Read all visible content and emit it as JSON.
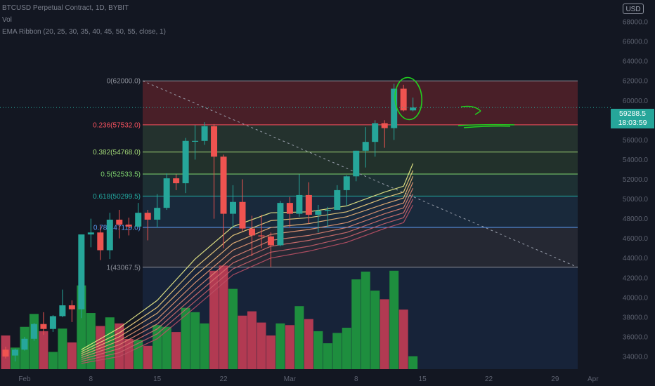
{
  "header": {
    "title": "BTCUSD Perpetual Contract, 1D, BYBIT",
    "volume_label": "Vol",
    "indicator_label": "EMA Ribbon (20, 25, 30, 35, 40, 45, 50, 55, close, 1)",
    "currency": "USD"
  },
  "last_price": {
    "value": "59288.5",
    "countdown": "18:03:59"
  },
  "colors": {
    "background": "#131722",
    "up": "#26a69a",
    "down": "#ef5350",
    "vol_up": "#1e8e3e",
    "vol_down": "#b23a52",
    "annotation": "#22d11f",
    "price_line": "#26a69a"
  },
  "chart_data": {
    "type": "candlestick",
    "symbol": "BTCUSD",
    "timeframe": "1D",
    "exchange": "BYBIT",
    "ylim": [
      33000,
      70000
    ],
    "y_ticks": [
      "34000.0",
      "36000.0",
      "38000.0",
      "40000.0",
      "42000.0",
      "44000.0",
      "46000.0",
      "48000.0",
      "50000.0",
      "52000.0",
      "54000.0",
      "56000.0",
      "58000.0",
      "60000.0",
      "62000.0",
      "64000.0",
      "66000.0",
      "68000.0"
    ],
    "x_ticks": [
      {
        "label": "Feb",
        "index": 2
      },
      {
        "label": "8",
        "index": 9
      },
      {
        "label": "15",
        "index": 16
      },
      {
        "label": "22",
        "index": 23
      },
      {
        "label": "Mar",
        "index": 30
      },
      {
        "label": "8",
        "index": 37
      },
      {
        "label": "15",
        "index": 44
      },
      {
        "label": "22",
        "index": 51
      },
      {
        "label": "29",
        "index": 58
      },
      {
        "label": "Apr",
        "index": 62
      }
    ],
    "candles": [
      {
        "date": "2021-01-31",
        "o": 34700,
        "h": 35000,
        "l": 33800,
        "c": 34000,
        "v": 3.9
      },
      {
        "date": "2021-02-01",
        "o": 34100,
        "h": 34800,
        "l": 33500,
        "c": 34700,
        "v": 2.5
      },
      {
        "date": "2021-02-02",
        "o": 34700,
        "h": 36000,
        "l": 34600,
        "c": 35800,
        "v": 4.9
      },
      {
        "date": "2021-02-03",
        "o": 35800,
        "h": 37400,
        "l": 35600,
        "c": 37300,
        "v": 6.4
      },
      {
        "date": "2021-02-04",
        "o": 37300,
        "h": 38500,
        "l": 36200,
        "c": 36800,
        "v": 4.4
      },
      {
        "date": "2021-02-05",
        "o": 36800,
        "h": 38200,
        "l": 36500,
        "c": 38100,
        "v": 2.0
      },
      {
        "date": "2021-02-06",
        "o": 38100,
        "h": 40800,
        "l": 38000,
        "c": 39200,
        "v": 4.7
      },
      {
        "date": "2021-02-07",
        "o": 39200,
        "h": 39700,
        "l": 37500,
        "c": 38800,
        "v": 3.1
      },
      {
        "date": "2021-02-08",
        "o": 38800,
        "h": 46400,
        "l": 37900,
        "c": 46400,
        "v": 9.7
      },
      {
        "date": "2021-02-09",
        "o": 46400,
        "h": 48000,
        "l": 45100,
        "c": 46600,
        "v": 6.5
      },
      {
        "date": "2021-02-10",
        "o": 46600,
        "h": 47300,
        "l": 43800,
        "c": 44800,
        "v": 5.0
      },
      {
        "date": "2021-02-11",
        "o": 44800,
        "h": 48600,
        "l": 43900,
        "c": 47900,
        "v": 6.0
      },
      {
        "date": "2021-02-12",
        "o": 47900,
        "h": 48900,
        "l": 46000,
        "c": 47400,
        "v": 5.3
      },
      {
        "date": "2021-02-13",
        "o": 47400,
        "h": 48100,
        "l": 46300,
        "c": 47200,
        "v": 3.5
      },
      {
        "date": "2021-02-14",
        "o": 47200,
        "h": 49600,
        "l": 47100,
        "c": 48600,
        "v": 3.4
      },
      {
        "date": "2021-02-15",
        "o": 48600,
        "h": 48900,
        "l": 45800,
        "c": 47900,
        "v": 2.7
      },
      {
        "date": "2021-02-16",
        "o": 47900,
        "h": 50500,
        "l": 47100,
        "c": 49100,
        "v": 5.1
      },
      {
        "date": "2021-02-17",
        "o": 49100,
        "h": 52600,
        "l": 48900,
        "c": 52100,
        "v": 4.9
      },
      {
        "date": "2021-02-18",
        "o": 52100,
        "h": 52500,
        "l": 50900,
        "c": 51600,
        "v": 4.3
      },
      {
        "date": "2021-02-19",
        "o": 51600,
        "h": 56200,
        "l": 50600,
        "c": 55900,
        "v": 7.1
      },
      {
        "date": "2021-02-20",
        "o": 55900,
        "h": 57500,
        "l": 54000,
        "c": 55900,
        "v": 6.6
      },
      {
        "date": "2021-02-21",
        "o": 55900,
        "h": 57800,
        "l": 55500,
        "c": 57400,
        "v": 5.3
      },
      {
        "date": "2021-02-22",
        "o": 57400,
        "h": 57600,
        "l": 48000,
        "c": 54300,
        "v": 11.4
      },
      {
        "date": "2021-02-23",
        "o": 54300,
        "h": 54500,
        "l": 45000,
        "c": 48500,
        "v": 12.0
      },
      {
        "date": "2021-02-24",
        "o": 48500,
        "h": 51400,
        "l": 47000,
        "c": 49700,
        "v": 9.3
      },
      {
        "date": "2021-02-25",
        "o": 49700,
        "h": 52000,
        "l": 46700,
        "c": 47000,
        "v": 6.2
      },
      {
        "date": "2021-02-26",
        "o": 47000,
        "h": 48300,
        "l": 44200,
        "c": 46300,
        "v": 6.7
      },
      {
        "date": "2021-02-27",
        "o": 46300,
        "h": 48400,
        "l": 45000,
        "c": 46200,
        "v": 5.4
      },
      {
        "date": "2021-02-28",
        "o": 46200,
        "h": 46600,
        "l": 43100,
        "c": 45300,
        "v": 3.9
      },
      {
        "date": "2021-03-01",
        "o": 45300,
        "h": 49800,
        "l": 45200,
        "c": 49600,
        "v": 5.3
      },
      {
        "date": "2021-03-02",
        "o": 49600,
        "h": 50200,
        "l": 47100,
        "c": 48500,
        "v": 5.1
      },
      {
        "date": "2021-03-03",
        "o": 48500,
        "h": 52500,
        "l": 48200,
        "c": 50400,
        "v": 7.3
      },
      {
        "date": "2021-03-04",
        "o": 50400,
        "h": 51700,
        "l": 47500,
        "c": 48400,
        "v": 5.8
      },
      {
        "date": "2021-03-05",
        "o": 48400,
        "h": 49400,
        "l": 46600,
        "c": 48800,
        "v": 4.4
      },
      {
        "date": "2021-03-06",
        "o": 48800,
        "h": 49200,
        "l": 47100,
        "c": 48900,
        "v": 3.0
      },
      {
        "date": "2021-03-07",
        "o": 48900,
        "h": 51400,
        "l": 48900,
        "c": 50900,
        "v": 4.2
      },
      {
        "date": "2021-03-08",
        "o": 50900,
        "h": 52400,
        "l": 49300,
        "c": 52300,
        "v": 4.8
      },
      {
        "date": "2021-03-09",
        "o": 52300,
        "h": 54900,
        "l": 51800,
        "c": 54900,
        "v": 10.4
      },
      {
        "date": "2021-03-10",
        "o": 54900,
        "h": 57300,
        "l": 53200,
        "c": 55800,
        "v": 11.3
      },
      {
        "date": "2021-03-11",
        "o": 55800,
        "h": 58000,
        "l": 54300,
        "c": 57700,
        "v": 9.1
      },
      {
        "date": "2021-03-12",
        "o": 57700,
        "h": 58000,
        "l": 55200,
        "c": 57200,
        "v": 8.1
      },
      {
        "date": "2021-03-13",
        "o": 57200,
        "h": 61700,
        "l": 56000,
        "c": 61200,
        "v": 11.4
      },
      {
        "date": "2021-03-14",
        "o": 61200,
        "h": 61600,
        "l": 58900,
        "c": 59000,
        "v": 6.9
      },
      {
        "date": "2021-03-15",
        "o": 59000,
        "h": 60300,
        "l": 58900,
        "c": 59288.5,
        "v": 1.5
      }
    ],
    "volume_unit_note": "relative volume",
    "ema_ribbon": {
      "periods": [
        20,
        25,
        30,
        35,
        40,
        45,
        50,
        55
      ],
      "colors": [
        "#eef08a",
        "#f2d27e",
        "#f1b77a",
        "#eb9a76",
        "#e08473",
        "#d5706f",
        "#c9606b",
        "#bb5065"
      ],
      "series": [
        [
          34700,
          36900,
          39700,
          43900,
          47200,
          48600,
          48700,
          49300,
          50700,
          51300,
          53600
        ],
        [
          34500,
          36400,
          39000,
          43000,
          46300,
          47800,
          48100,
          48700,
          50100,
          50700,
          52900
        ],
        [
          34300,
          36000,
          38400,
          42200,
          45500,
          47100,
          47500,
          48200,
          49500,
          50100,
          52300
        ],
        [
          34100,
          35600,
          37800,
          41500,
          44800,
          46400,
          46900,
          47600,
          49000,
          49600,
          51700
        ],
        [
          33900,
          35200,
          37300,
          40800,
          44100,
          45800,
          46300,
          47100,
          48500,
          49100,
          51100
        ],
        [
          33700,
          34800,
          36800,
          40200,
          43500,
          45200,
          45800,
          46600,
          48000,
          48600,
          50500
        ],
        [
          33500,
          34400,
          36300,
          39600,
          42900,
          44600,
          45200,
          46100,
          47500,
          48100,
          50000
        ],
        [
          33300,
          34000,
          35800,
          39000,
          42300,
          44000,
          44700,
          45600,
          47000,
          47600,
          49400
        ]
      ],
      "x_index": [
        8,
        12,
        16,
        20,
        24,
        28,
        32,
        36,
        40,
        42,
        43
      ]
    },
    "fibonacci": {
      "levels": [
        {
          "ratio": "0",
          "price": "62000.0",
          "value": 62000,
          "color": "#8b8f99"
        },
        {
          "ratio": "0.236",
          "price": "57532.0",
          "value": 57532,
          "color": "#f7525f"
        },
        {
          "ratio": "0.382",
          "price": "54768.0",
          "value": 54768,
          "color": "#a3d977"
        },
        {
          "ratio": "0.5",
          "price": "52533.5",
          "value": 52533.5,
          "color": "#7ed36f"
        },
        {
          "ratio": "0.618",
          "price": "50299.5",
          "value": 50299.5,
          "color": "#22a8a0"
        },
        {
          "ratio": "0.786",
          "price": "47119.0",
          "value": 47119,
          "color": "#5b9cf6"
        },
        {
          "ratio": "1",
          "price": "43067.5",
          "value": 43067.5,
          "color": "#8b8f99"
        }
      ]
    }
  }
}
